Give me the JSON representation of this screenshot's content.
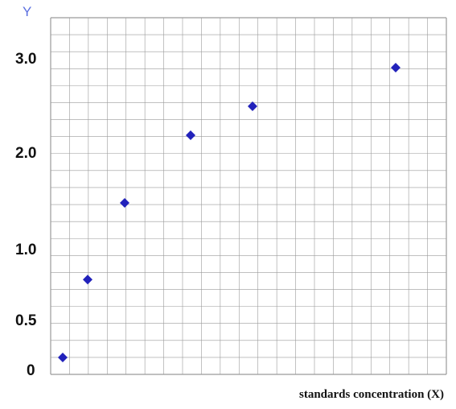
{
  "chart_data": {
    "type": "scatter",
    "title": "",
    "xlabel": "standards concentration (X)",
    "ylabel": "Y",
    "y_tick_labels": [
      "3.0",
      "2.0",
      "1.0",
      "0.5",
      "0"
    ],
    "x": [
      1,
      2,
      3,
      4,
      5,
      6
    ],
    "y": [
      0.1,
      0.8,
      1.5,
      2.2,
      2.5,
      2.9
    ],
    "marker": "diamond",
    "marker_color": "#2222bb",
    "grid": true,
    "grid_color": "#9a9a9a"
  }
}
